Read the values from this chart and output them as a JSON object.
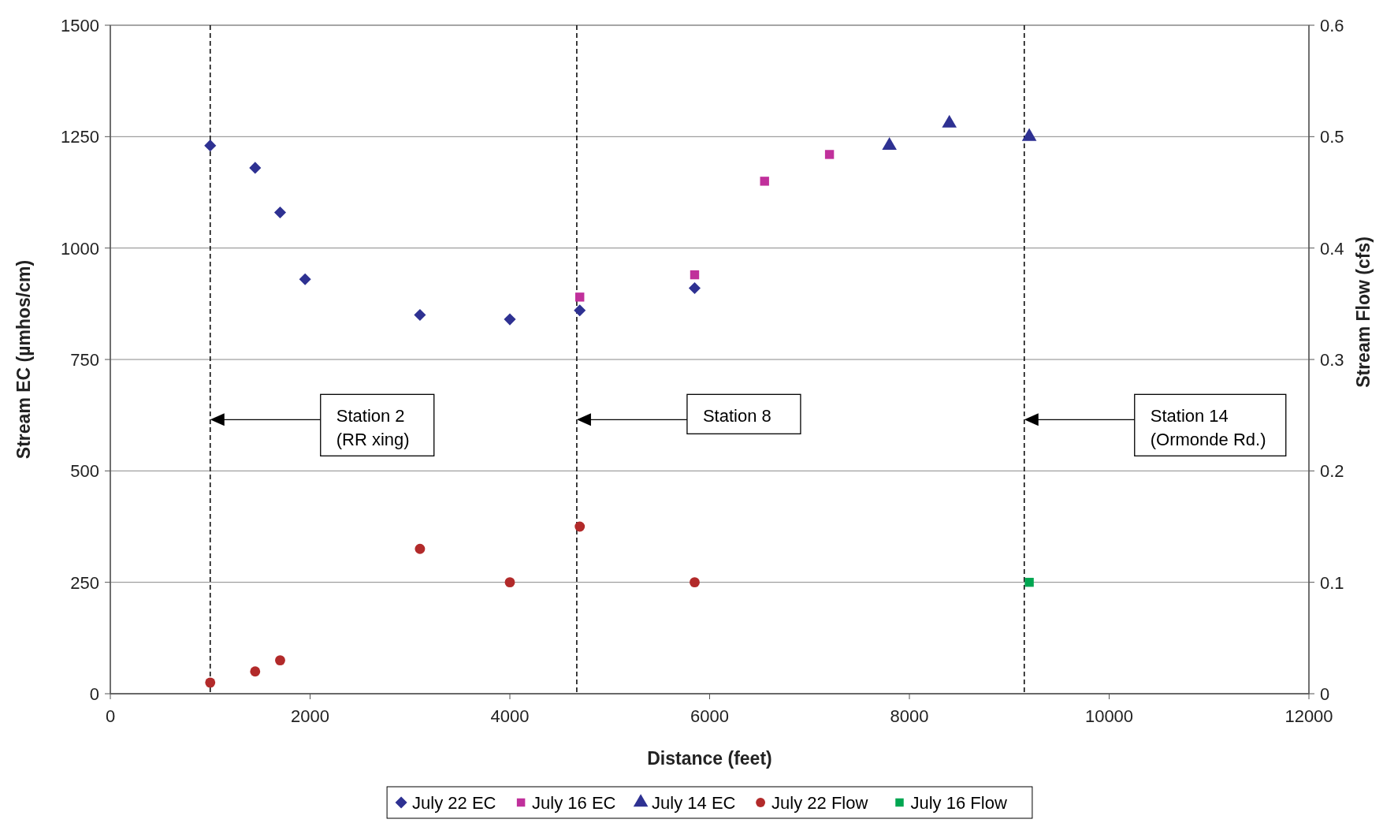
{
  "chart_data": {
    "type": "scatter",
    "xlabel": "Distance (feet)",
    "ylabel": "Stream EC (µmhos/cm)",
    "y2label": "Stream Flow (cfs)",
    "xlim": [
      0,
      12000
    ],
    "xticks": [
      0,
      2000,
      4000,
      6000,
      8000,
      10000,
      12000
    ],
    "ylim": [
      0,
      1500
    ],
    "yticks": [
      0,
      250,
      500,
      750,
      1000,
      1250,
      1500
    ],
    "y2lim": [
      0,
      0.6
    ],
    "y2ticks": [
      0,
      0.1,
      0.2,
      0.3,
      0.4,
      0.5,
      0.6
    ],
    "grid": "y",
    "legend": "bottom",
    "series": [
      {
        "name": "July 22 EC",
        "color": "#2e3192",
        "marker": "diamond",
        "x": [
          1000,
          1450,
          1700,
          1950,
          3100,
          4000,
          4700,
          5850
        ],
        "values": [
          1230,
          1180,
          1080,
          930,
          850,
          840,
          860,
          910
        ]
      },
      {
        "name": "July 16 EC",
        "color": "#c0309b",
        "marker": "square",
        "x": [
          4700,
          5850,
          6550,
          7200
        ],
        "values": [
          890,
          940,
          1150,
          1210
        ]
      },
      {
        "name": "July 14 EC",
        "color": "#2e3192",
        "marker": "triangle",
        "x": [
          7800,
          8400,
          9200
        ],
        "values": [
          1230,
          1280,
          1250
        ]
      },
      {
        "name": "July 22 Flow",
        "color": "#b22a2a",
        "marker": "circle",
        "axis": "y2",
        "x": [
          1000,
          1450,
          1700,
          3100,
          4000,
          4700,
          5850
        ],
        "values": [
          0.01,
          0.02,
          0.03,
          0.13,
          0.1,
          0.15,
          0.1
        ]
      },
      {
        "name": "July 16 Flow",
        "color": "#00a651",
        "marker": "square",
        "axis": "y2",
        "x": [
          9200
        ],
        "values": [
          0.1
        ]
      }
    ],
    "ref_lines": [
      {
        "axis": "x",
        "value": 1000,
        "line_style": "dashed",
        "color": "#000000"
      },
      {
        "axis": "x",
        "value": 4670,
        "line_style": "dashed",
        "color": "#000000"
      },
      {
        "axis": "x",
        "value": 9150,
        "line_style": "dashed",
        "color": "#000000"
      }
    ],
    "annotations": [
      "Station 2\n(RR xing)",
      "Station 8",
      "Station 14\n(Ormonde Rd.)"
    ]
  }
}
